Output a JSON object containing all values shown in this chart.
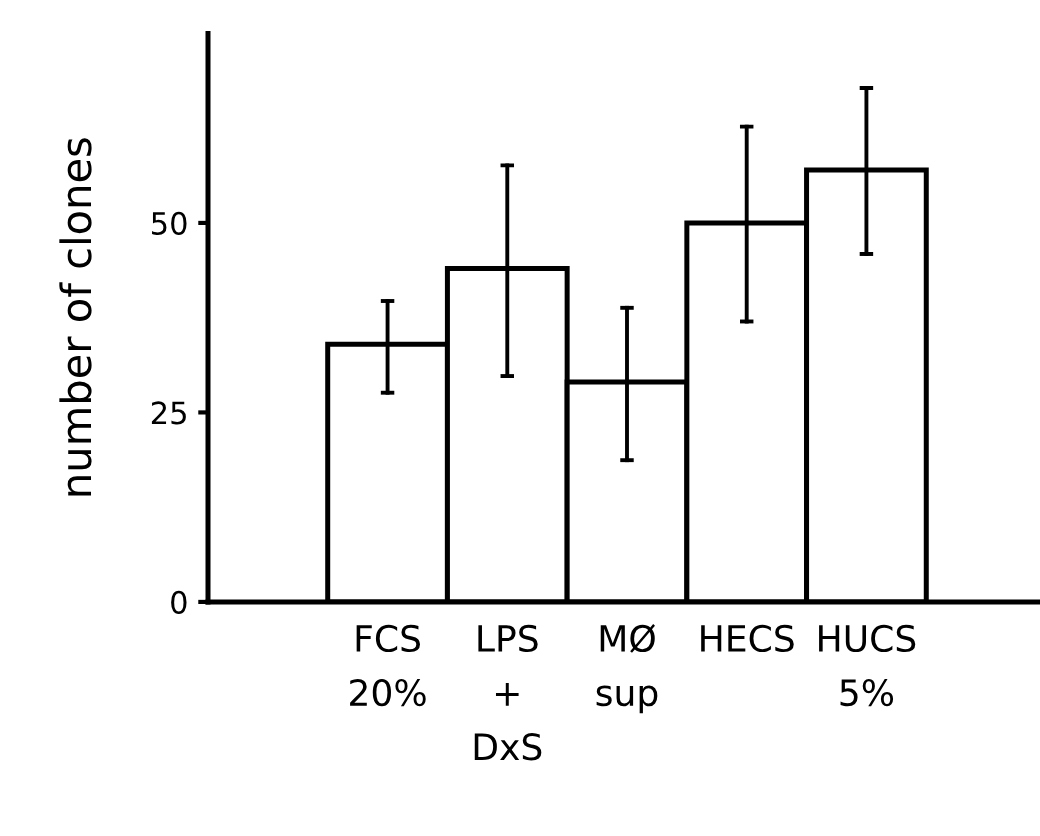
{
  "chart_data": {
    "type": "bar",
    "ylabel": "number of clones",
    "categories": [
      "FCS\n20%",
      "LPS\n+\nDxS",
      "MØ\nsup",
      "HECS",
      "HUCS\n5%"
    ],
    "values": [
      34,
      44,
      29,
      50,
      57
    ],
    "errors": [
      [
        27.6,
        39.7
      ],
      [
        29.8,
        57.6
      ],
      [
        18.7,
        38.8
      ],
      [
        37,
        62.7
      ],
      [
        45.9,
        67.8
      ]
    ],
    "color": "#ffffff",
    "ylim": [
      0,
      75
    ],
    "yticks": [
      0,
      25,
      50
    ],
    "grid": false
  }
}
